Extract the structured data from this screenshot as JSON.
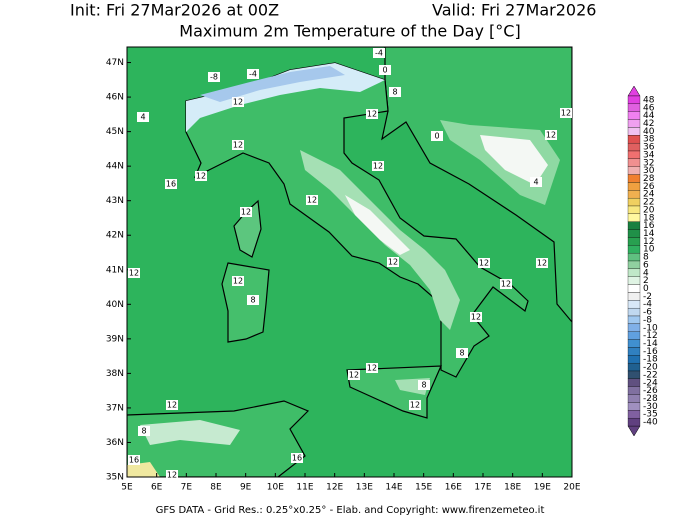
{
  "header": {
    "init": "Init: Fri 27Mar2026 at 00Z",
    "valid": "Valid: Fri 27Mar2026",
    "title": "Maximum 2m Temperature of the Day [°C]"
  },
  "map": {
    "xlim": [
      5,
      20
    ],
    "ylim": [
      35,
      47.45
    ],
    "xticks": [
      {
        "value": 5,
        "label": "5E"
      },
      {
        "value": 6,
        "label": "6E"
      },
      {
        "value": 7,
        "label": "7E"
      },
      {
        "value": 8,
        "label": "8E"
      },
      {
        "value": 9,
        "label": "9E"
      },
      {
        "value": 10,
        "label": "10E"
      },
      {
        "value": 11,
        "label": "11E"
      },
      {
        "value": 12,
        "label": "12E"
      },
      {
        "value": 13,
        "label": "13E"
      },
      {
        "value": 14,
        "label": "14E"
      },
      {
        "value": 15,
        "label": "15E"
      },
      {
        "value": 16,
        "label": "16E"
      },
      {
        "value": 17,
        "label": "17E"
      },
      {
        "value": 18,
        "label": "18E"
      },
      {
        "value": 19,
        "label": "19E"
      },
      {
        "value": 20,
        "label": "20E"
      }
    ],
    "yticks": [
      {
        "value": 35,
        "label": "35N"
      },
      {
        "value": 36,
        "label": "36N"
      },
      {
        "value": 37,
        "label": "37N"
      },
      {
        "value": 38,
        "label": "38N"
      },
      {
        "value": 39,
        "label": "39N"
      },
      {
        "value": 40,
        "label": "40N"
      },
      {
        "value": 41,
        "label": "41N"
      },
      {
        "value": 42,
        "label": "42N"
      },
      {
        "value": 43,
        "label": "43N"
      },
      {
        "value": 44,
        "label": "44N"
      },
      {
        "value": 45,
        "label": "45N"
      },
      {
        "value": 46,
        "label": "46N"
      },
      {
        "value": 47,
        "label": "47N"
      }
    ],
    "contour_labels": [
      "12",
      "12",
      "12",
      "16",
      "12",
      "12",
      "8",
      "0",
      "12",
      "12",
      "12",
      "12",
      "12",
      "12",
      "8",
      "12",
      "12",
      "12",
      "12",
      "12",
      "8",
      "12",
      "12",
      "8",
      "12",
      "12",
      "8",
      "16",
      "12",
      "16",
      "-4",
      "-8",
      "-4",
      "0",
      "4",
      "4"
    ]
  },
  "colorbar": {
    "levels": [
      48,
      46,
      44,
      42,
      40,
      38,
      36,
      34,
      32,
      30,
      28,
      26,
      24,
      22,
      20,
      18,
      16,
      14,
      12,
      10,
      8,
      6,
      4,
      2,
      0,
      -2,
      -4,
      -6,
      -8,
      -10,
      -12,
      -14,
      -16,
      -18,
      -20,
      -22,
      -24,
      -26,
      -28,
      -30,
      -35,
      -40
    ],
    "colors": [
      "#e040e0",
      "#e060e0",
      "#f080f0",
      "#f0a0f0",
      "#f0c0f0",
      "#e05050",
      "#e06060",
      "#f07070",
      "#f09090",
      "#f0b0b0",
      "#f08030",
      "#f0a040",
      "#f0b050",
      "#f0d060",
      "#f8e880",
      "#fff8a0",
      "#1a8040",
      "#209048",
      "#28a050",
      "#30b060",
      "#60c080",
      "#90d0a0",
      "#c0e8c8",
      "#e0f4e4",
      "#ffffff",
      "#f0f0f0",
      "#d8e8f8",
      "#c0d8f0",
      "#a0c8f0",
      "#80b0e8",
      "#60a0e0",
      "#4090d0",
      "#3080c0",
      "#2070b0",
      "#206090",
      "#305070",
      "#605080",
      "#8070a0",
      "#9080b0",
      "#a090c0",
      "#8060a0",
      "#604080"
    ]
  },
  "footer": "GFS DATA - Grid Res.: 0.25°x0.25° - Elab. and Copyright: www.firenzemeteo.it"
}
